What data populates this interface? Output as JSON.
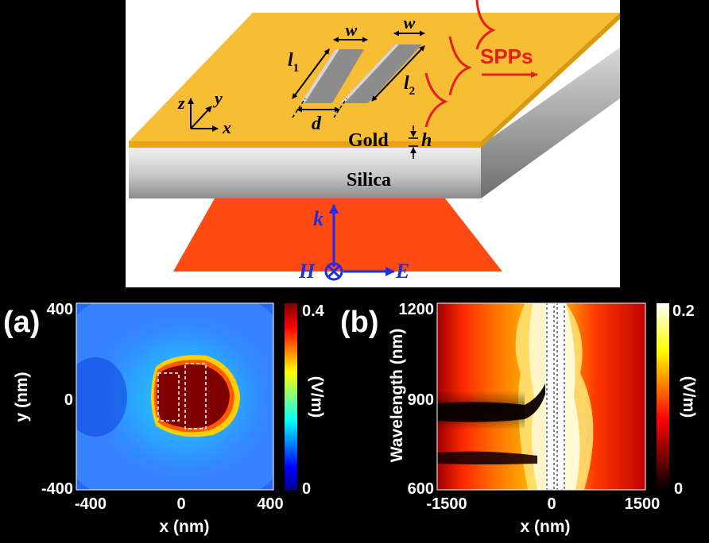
{
  "schematic": {
    "axis_labels": {
      "z": "z",
      "y": "y",
      "x": "x"
    },
    "dim_w1": "w",
    "dim_w2": "w",
    "dim_l1": "l",
    "dim_l1_sub": "1",
    "dim_l2": "l",
    "dim_l2_sub": "2",
    "dim_d": "d",
    "spp_label": "SPPs",
    "gold_label": "Gold",
    "h_label": "h",
    "silica_label": "Silica",
    "k_label": "k",
    "H_label": "H",
    "E_label": "E",
    "colors": {
      "gold": "#f6bd35",
      "silica": "#c8c8c8",
      "beam": "#ff4a12",
      "spp": "#e51e1e",
      "vector": "#1f2fe0"
    }
  },
  "panel_a": {
    "tag": "(a)",
    "ylabel": "y (nm)",
    "xlabel": "x (nm)",
    "y_ticks": [
      "400",
      "0",
      "-400"
    ],
    "x_ticks": [
      "-400",
      "0",
      "400"
    ],
    "colorbar_max": "0.4",
    "colorbar_min": "0",
    "colorbar_unit": "(V/m)",
    "colormap": "jet"
  },
  "panel_b": {
    "tag": "(b)",
    "ylabel": "Wavelength (nm)",
    "xlabel": "x (nm)",
    "y_ticks": [
      "1200",
      "900",
      "600"
    ],
    "x_ticks": [
      "-1500",
      "0",
      "1500"
    ],
    "colorbar_max": "0.2",
    "colorbar_min": "0",
    "colorbar_unit": "(V/m)",
    "colormap": "hot"
  },
  "chart_data": [
    {
      "type": "heatmap",
      "title": "",
      "xlabel": "x (nm)",
      "ylabel": "y (nm)",
      "xlim": [
        -400,
        400
      ],
      "ylim": [
        -400,
        400
      ],
      "colorbar_label": "(V/m)",
      "clim": [
        0,
        0.4
      ],
      "colormap": "jet"
    },
    {
      "type": "heatmap",
      "title": "",
      "xlabel": "x (nm)",
      "ylabel": "Wavelength (nm)",
      "xlim": [
        -1500,
        1500
      ],
      "ylim": [
        600,
        1200
      ],
      "colorbar_label": "(V/m)",
      "clim": [
        0,
        0.2
      ],
      "colormap": "hot"
    }
  ]
}
